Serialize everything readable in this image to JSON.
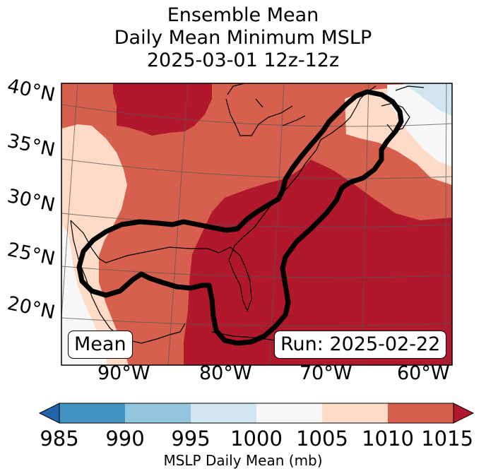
{
  "title": {
    "line1": "Ensemble Mean",
    "line2": "Daily Mean Minimum MSLP",
    "line3": "2025-03-01 12z-12z"
  },
  "map": {
    "lat_labels": [
      "40°N",
      "35°N",
      "30°N",
      "25°N",
      "20°N"
    ],
    "lon_labels": [
      "90°W",
      "80°W",
      "70°W",
      "60°W"
    ],
    "mean_box": "Mean",
    "run_box": "Run: 2025-02-22",
    "colors": {
      "above_1010": "#b2182b",
      "c1005_1010": "#d6604d",
      "c1000_1005": "#fddbc7",
      "c995_1000": "#f7f7f7",
      "c990_995": "#d1e5f0",
      "coast": "#000000",
      "contour": "#000000"
    }
  },
  "colorbar": {
    "ticks": [
      "985",
      "990",
      "995",
      "1000",
      "1005",
      "1010",
      "1015"
    ],
    "label": "MSLP Daily Mean (mb)",
    "colors": [
      "#2166ac",
      "#4393c3",
      "#92c5de",
      "#d1e5f0",
      "#f7f7f7",
      "#fddbc7",
      "#d6604d",
      "#b2182b"
    ]
  }
}
